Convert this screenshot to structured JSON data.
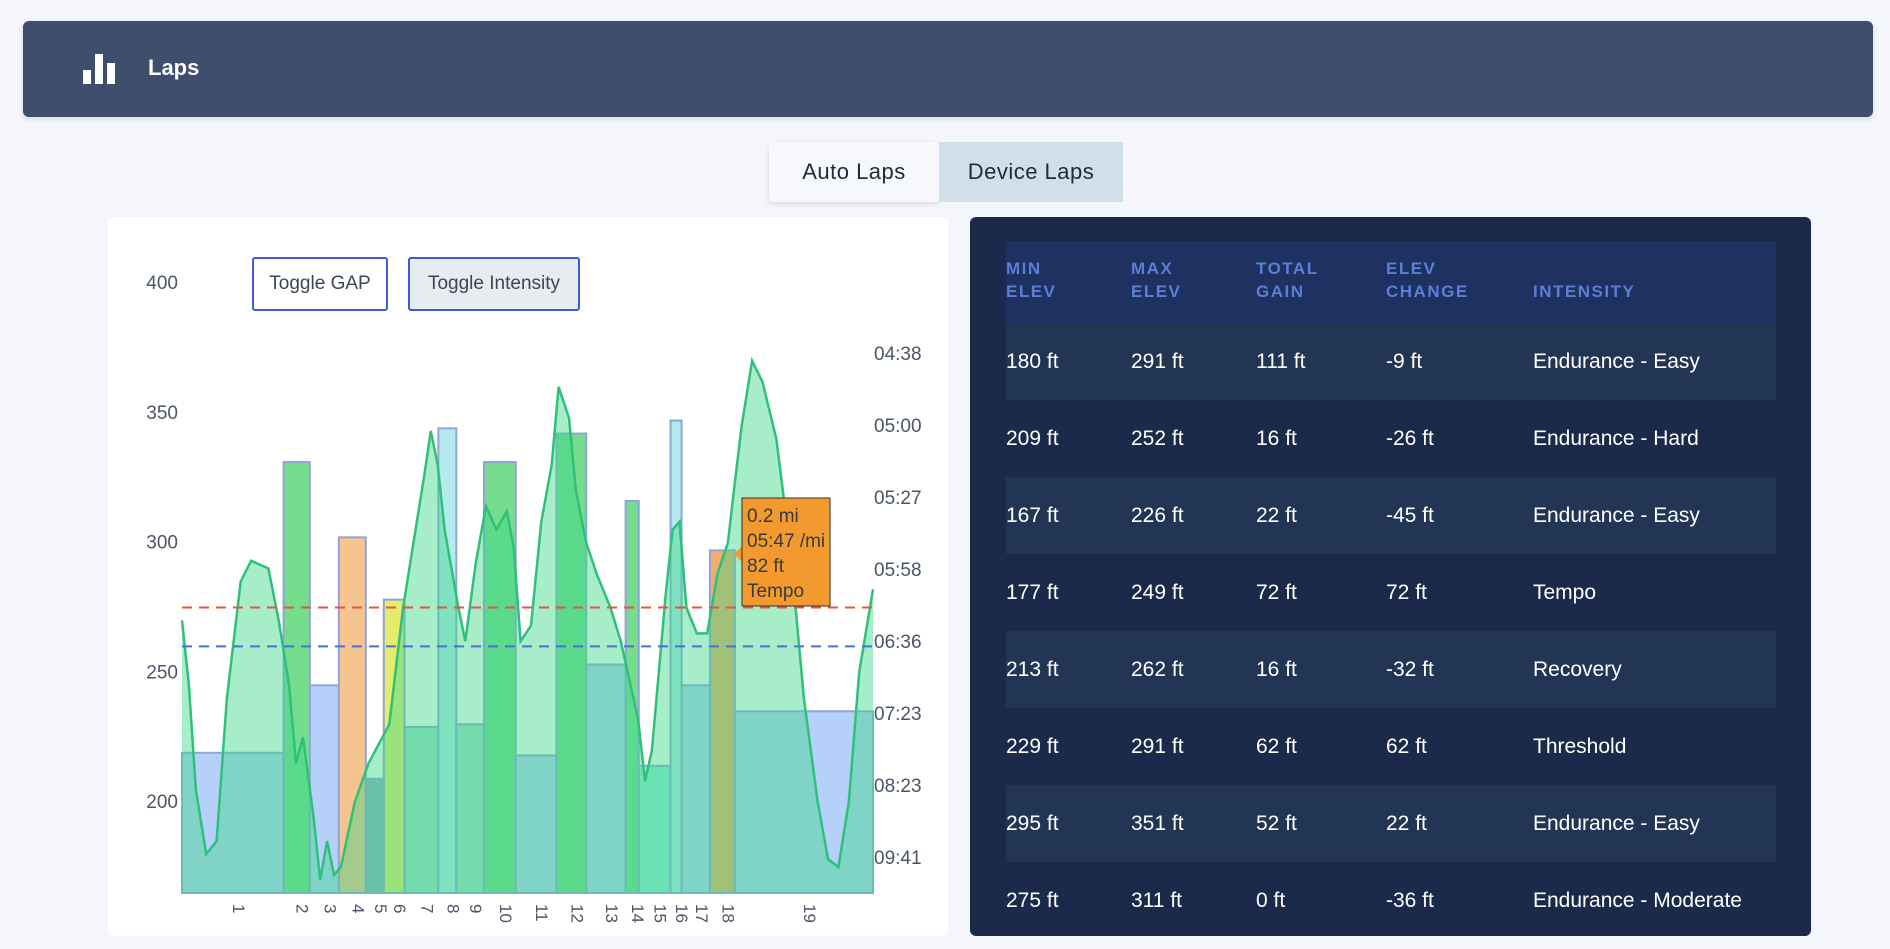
{
  "header": {
    "title": "Laps",
    "icon": "bar-chart-icon"
  },
  "tabs": [
    {
      "label": "Auto Laps",
      "active": true
    },
    {
      "label": "Device Laps",
      "active": false
    }
  ],
  "chart": {
    "buttons": {
      "gap": "Toggle GAP",
      "intensity": "Toggle Intensity"
    },
    "tooltip": {
      "distance": "0.2 mi",
      "pace": "05:47 /mi",
      "elevation": "82 ft",
      "intensity": "Tempo"
    }
  },
  "chart_data": {
    "type": "bar",
    "y_left": {
      "ticks": [
        400,
        350,
        300,
        250,
        200
      ],
      "range": [
        165,
        410
      ]
    },
    "y_right": {
      "ticks": [
        "04:38",
        "05:00",
        "05:27",
        "05:58",
        "06:36",
        "07:23",
        "08:23",
        "09:41"
      ]
    },
    "x_ticks": [
      "1",
      "2",
      "3",
      "4",
      "5",
      "6",
      "7",
      "8",
      "9",
      "10",
      "11",
      "12",
      "13",
      "14",
      "15",
      "16",
      "17",
      "18",
      "19"
    ],
    "reference_lines": [
      {
        "color": "#e8553f",
        "value": 275
      },
      {
        "color": "#4a6fd9",
        "value": 260
      }
    ],
    "laps": [
      {
        "lap": "1",
        "start": 0,
        "end": 0.147,
        "value": 219,
        "color": "#a8c8f8"
      },
      {
        "lap": "2",
        "start": 0.147,
        "end": 0.185,
        "value": 331,
        "color": "#5ed67a"
      },
      {
        "lap": "3",
        "start": 0.185,
        "end": 0.227,
        "value": 245,
        "color": "#a8c8f8"
      },
      {
        "lap": "4",
        "start": 0.227,
        "end": 0.266,
        "value": 302,
        "color": "#f4ba7a"
      },
      {
        "lap": "5",
        "start": 0.266,
        "end": 0.292,
        "value": 209,
        "color": "#7aa0b8"
      },
      {
        "lap": "6",
        "start": 0.292,
        "end": 0.322,
        "value": 278,
        "color": "#e0e854"
      },
      {
        "lap": "7",
        "start": 0.322,
        "end": 0.371,
        "value": 229,
        "color": "#8fd8c0"
      },
      {
        "lap": "8",
        "start": 0.371,
        "end": 0.397,
        "value": 344,
        "color": "#a8e8ec"
      },
      {
        "lap": "9",
        "start": 0.397,
        "end": 0.437,
        "value": 230,
        "color": "#8fd8c0"
      },
      {
        "lap": "10",
        "start": 0.437,
        "end": 0.483,
        "value": 331,
        "color": "#5ed67a"
      },
      {
        "lap": "11",
        "start": 0.483,
        "end": 0.542,
        "value": 218,
        "color": "#a8c8f8"
      },
      {
        "lap": "12",
        "start": 0.542,
        "end": 0.585,
        "value": 342,
        "color": "#5ed67a"
      },
      {
        "lap": "13",
        "start": 0.585,
        "end": 0.642,
        "value": 253,
        "color": "#a8c8f8"
      },
      {
        "lap": "14",
        "start": 0.642,
        "end": 0.661,
        "value": 316,
        "color": "#5ed67a"
      },
      {
        "lap": "15",
        "start": 0.661,
        "end": 0.707,
        "value": 214,
        "color": "#7ee8d4"
      },
      {
        "lap": "16",
        "start": 0.707,
        "end": 0.723,
        "value": 347,
        "color": "#a8e8ec"
      },
      {
        "lap": "17",
        "start": 0.723,
        "end": 0.764,
        "value": 245,
        "color": "#a8c8f8"
      },
      {
        "lap": "18",
        "start": 0.764,
        "end": 0.8,
        "value": 297,
        "color": "#f0a050"
      },
      {
        "lap": "19",
        "start": 0.8,
        "end": 1.0,
        "value": 235,
        "color": "#a8c8f8"
      }
    ],
    "elevation_profile": [
      [
        0,
        270
      ],
      [
        0.01,
        245
      ],
      [
        0.02,
        205
      ],
      [
        0.035,
        180
      ],
      [
        0.05,
        185
      ],
      [
        0.065,
        240
      ],
      [
        0.085,
        285
      ],
      [
        0.1,
        293
      ],
      [
        0.125,
        290
      ],
      [
        0.14,
        270
      ],
      [
        0.155,
        245
      ],
      [
        0.165,
        215
      ],
      [
        0.175,
        225
      ],
      [
        0.19,
        195
      ],
      [
        0.2,
        170
      ],
      [
        0.21,
        185
      ],
      [
        0.22,
        172
      ],
      [
        0.23,
        175
      ],
      [
        0.25,
        200
      ],
      [
        0.27,
        215
      ],
      [
        0.3,
        230
      ],
      [
        0.32,
        275
      ],
      [
        0.335,
        300
      ],
      [
        0.35,
        325
      ],
      [
        0.36,
        343
      ],
      [
        0.37,
        330
      ],
      [
        0.38,
        305
      ],
      [
        0.39,
        290
      ],
      [
        0.4,
        275
      ],
      [
        0.41,
        262
      ],
      [
        0.425,
        292
      ],
      [
        0.44,
        314
      ],
      [
        0.455,
        305
      ],
      [
        0.47,
        312
      ],
      [
        0.48,
        298
      ],
      [
        0.49,
        262
      ],
      [
        0.505,
        268
      ],
      [
        0.52,
        308
      ],
      [
        0.535,
        330
      ],
      [
        0.545,
        360
      ],
      [
        0.56,
        348
      ],
      [
        0.57,
        320
      ],
      [
        0.585,
        300
      ],
      [
        0.6,
        288
      ],
      [
        0.62,
        275
      ],
      [
        0.635,
        262
      ],
      [
        0.645,
        250
      ],
      [
        0.66,
        232
      ],
      [
        0.67,
        208
      ],
      [
        0.68,
        220
      ],
      [
        0.7,
        280
      ],
      [
        0.71,
        305
      ],
      [
        0.72,
        308
      ],
      [
        0.73,
        275
      ],
      [
        0.745,
        265
      ],
      [
        0.76,
        265
      ],
      [
        0.775,
        288
      ],
      [
        0.79,
        300
      ],
      [
        0.8,
        323
      ],
      [
        0.81,
        345
      ],
      [
        0.825,
        370
      ],
      [
        0.84,
        362
      ],
      [
        0.86,
        340
      ],
      [
        0.88,
        298
      ],
      [
        0.9,
        240
      ],
      [
        0.92,
        200
      ],
      [
        0.935,
        178
      ],
      [
        0.95,
        175
      ],
      [
        0.965,
        200
      ],
      [
        0.98,
        250
      ],
      [
        1.0,
        282
      ]
    ]
  },
  "table": {
    "headers": [
      {
        "line1": "MIN",
        "line2": "ELEV"
      },
      {
        "line1": "MAX",
        "line2": "ELEV"
      },
      {
        "line1": "TOTAL",
        "line2": "GAIN"
      },
      {
        "line1": "ELEV",
        "line2": "CHANGE"
      },
      {
        "line1": "",
        "line2": "INTENSITY"
      }
    ],
    "rows": [
      [
        "180 ft",
        "291 ft",
        "111 ft",
        "-9 ft",
        "Endurance - Easy"
      ],
      [
        "209 ft",
        "252 ft",
        "16 ft",
        "-26 ft",
        "Endurance - Hard"
      ],
      [
        "167 ft",
        "226 ft",
        "22 ft",
        "-45 ft",
        "Endurance - Easy"
      ],
      [
        "177 ft",
        "249 ft",
        "72 ft",
        "72 ft",
        "Tempo"
      ],
      [
        "213 ft",
        "262 ft",
        "16 ft",
        "-32 ft",
        "Recovery"
      ],
      [
        "229 ft",
        "291 ft",
        "62 ft",
        "62 ft",
        "Threshold"
      ],
      [
        "295 ft",
        "351 ft",
        "52 ft",
        "22 ft",
        "Endurance - Easy"
      ],
      [
        "275 ft",
        "311 ft",
        "0 ft",
        "-36 ft",
        "Endurance - Moderate"
      ]
    ]
  }
}
